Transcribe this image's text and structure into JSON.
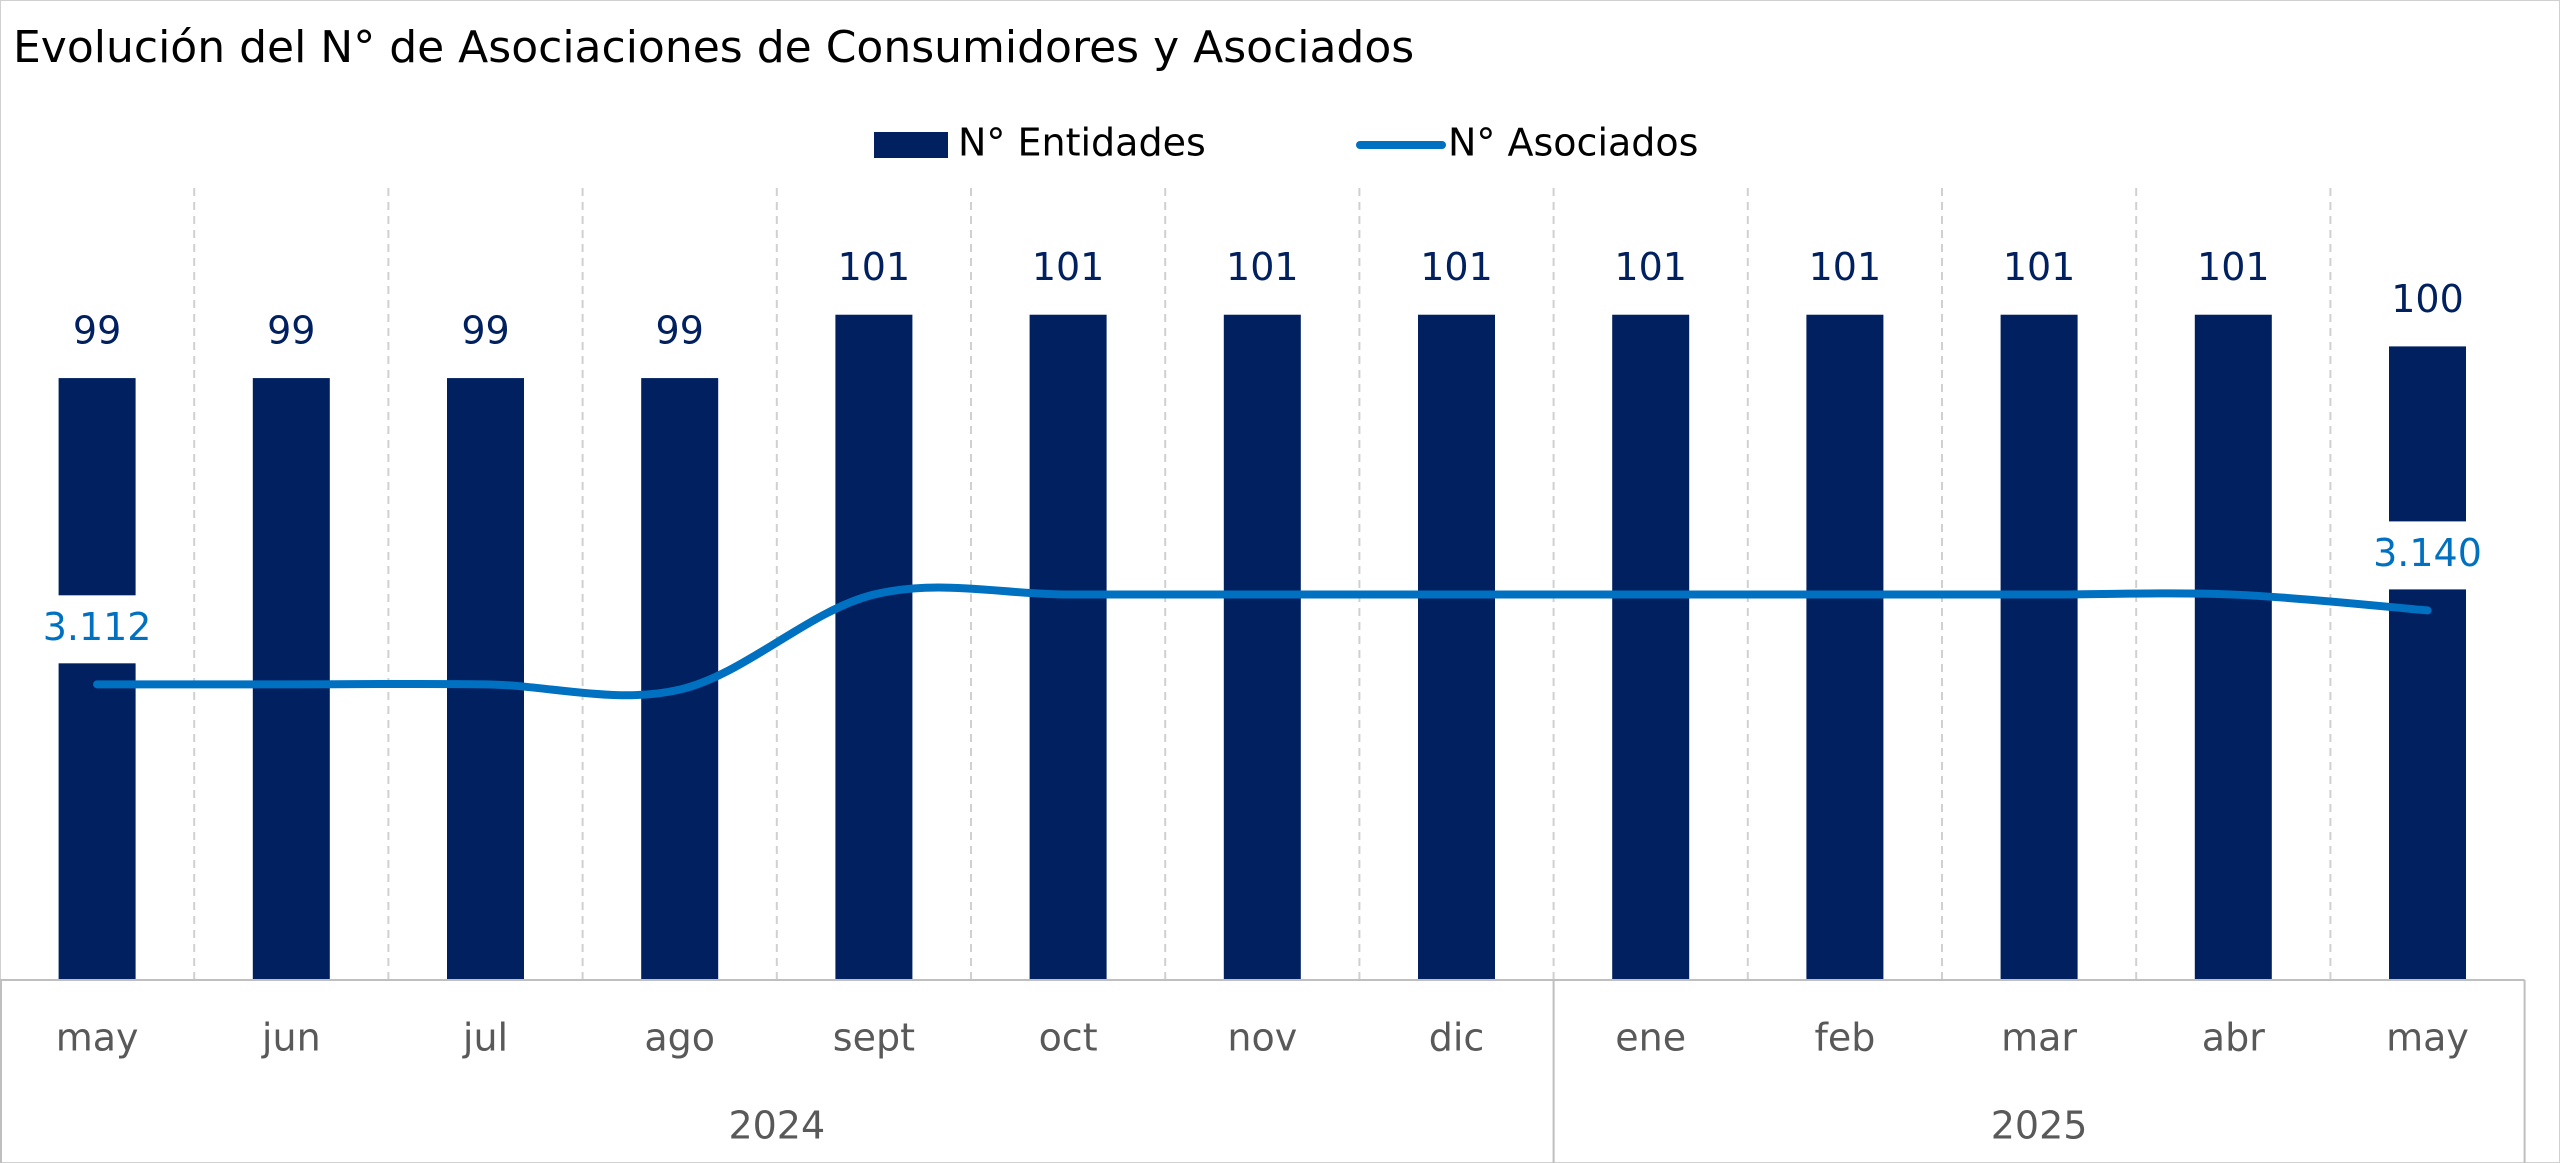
{
  "chart_data": {
    "type": "bar_line",
    "title": "Evolución del N° de Asociaciones de Consumidores y Asociados",
    "categories": [
      "may",
      "jun",
      "jul",
      "ago",
      "sept",
      "oct",
      "nov",
      "dic",
      "ene",
      "feb",
      "mar",
      "abr",
      "may"
    ],
    "groups": [
      {
        "label": "2024",
        "count": 8
      },
      {
        "label": "2025",
        "count": 5
      }
    ],
    "series": [
      {
        "name": "N° Entidades",
        "color": "#002060",
        "values": [
          99,
          99,
          99,
          99,
          101,
          101,
          101,
          101,
          101,
          101,
          101,
          101,
          100
        ]
      },
      {
        "name": "N° Asociados",
        "color": "#0070c0",
        "axis": "y2",
        "values": [
          3112,
          3112,
          3112,
          3110,
          3146,
          3146,
          3146,
          3146,
          3146,
          3146,
          3146,
          3146,
          3140
        ],
        "value_labels": [
          "3.112",
          null,
          null,
          null,
          null,
          null,
          null,
          null,
          null,
          null,
          null,
          null,
          "3.140"
        ]
      }
    ],
    "ylim": [
      80,
      105
    ],
    "y2lim": [
      3000,
      3300
    ],
    "legend": "top"
  }
}
